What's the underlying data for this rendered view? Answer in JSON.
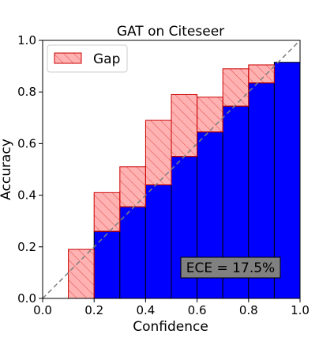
{
  "chart_data": {
    "type": "bar",
    "title": "GAT on Citeseer",
    "xlabel": "Confidence",
    "ylabel": "Accuracy",
    "xlim": [
      0.0,
      1.0
    ],
    "ylim": [
      0.0,
      1.0
    ],
    "grid": false,
    "x_ticks": [
      "0.0",
      "0.2",
      "0.4",
      "0.6",
      "0.8",
      "1.0"
    ],
    "y_ticks": [
      "0.0",
      "0.2",
      "0.4",
      "0.6",
      "0.8",
      "1.0"
    ],
    "legend": {
      "placement": "top-left",
      "entries": [
        "Gap"
      ]
    },
    "bins": [
      {
        "start": 0.1,
        "end": 0.2,
        "accuracy": 0.0,
        "expected": 0.19
      },
      {
        "start": 0.2,
        "end": 0.3,
        "accuracy": 0.26,
        "expected": 0.41
      },
      {
        "start": 0.3,
        "end": 0.4,
        "accuracy": 0.355,
        "expected": 0.51
      },
      {
        "start": 0.4,
        "end": 0.5,
        "accuracy": 0.44,
        "expected": 0.69
      },
      {
        "start": 0.5,
        "end": 0.6,
        "accuracy": 0.55,
        "expected": 0.79
      },
      {
        "start": 0.6,
        "end": 0.7,
        "accuracy": 0.645,
        "expected": 0.78
      },
      {
        "start": 0.7,
        "end": 0.8,
        "accuracy": 0.745,
        "expected": 0.89
      },
      {
        "start": 0.8,
        "end": 0.9,
        "accuracy": 0.835,
        "expected": 0.905
      },
      {
        "start": 0.9,
        "end": 1.0,
        "accuracy": 0.915,
        "expected": 0.915
      }
    ],
    "annotation": {
      "text": "ECE = 17.5%",
      "placement": "bottom-right"
    },
    "colors": {
      "accuracy_bar": "#0000ff",
      "gap_fill": "#ff0000",
      "gap_edge": "#cc0000",
      "diagonal": "#808080",
      "annotation_bg": "#808080"
    }
  }
}
